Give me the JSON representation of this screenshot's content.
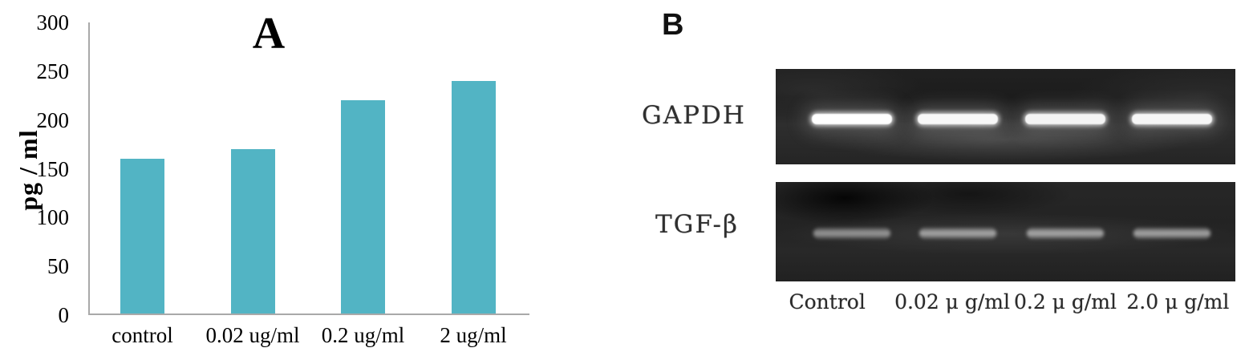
{
  "figure": {
    "background": "#ffffff"
  },
  "chart_data": [
    {
      "type": "bar",
      "panel_label": "A",
      "title": "A",
      "ylabel": "pg / ml",
      "xlabel": "",
      "categories": [
        "control",
        "0.02 ug/ml",
        "0.2 ug/ml",
        "2 ug/ml"
      ],
      "values": [
        160,
        170,
        220,
        240
      ],
      "ylim": [
        0,
        300
      ],
      "yticks": [
        0,
        50,
        100,
        150,
        200,
        250,
        300
      ],
      "bar_color": "#52b4c4",
      "axis_color": "#a9a9a9",
      "grid": false,
      "legend": "none"
    },
    {
      "type": "gel_blot_image",
      "panel_label": "B",
      "rows": [
        {
          "label": "GAPDH",
          "band_intensities": [
            1.0,
            0.97,
            0.95,
            0.96
          ]
        },
        {
          "label": "TGF-β",
          "band_intensities": [
            0.55,
            0.68,
            0.7,
            0.68
          ]
        }
      ],
      "lane_labels": [
        "Control",
        "0.02 μ g/ml",
        "0.2 μ g/ml",
        "2.0 μ g/ml"
      ]
    }
  ]
}
